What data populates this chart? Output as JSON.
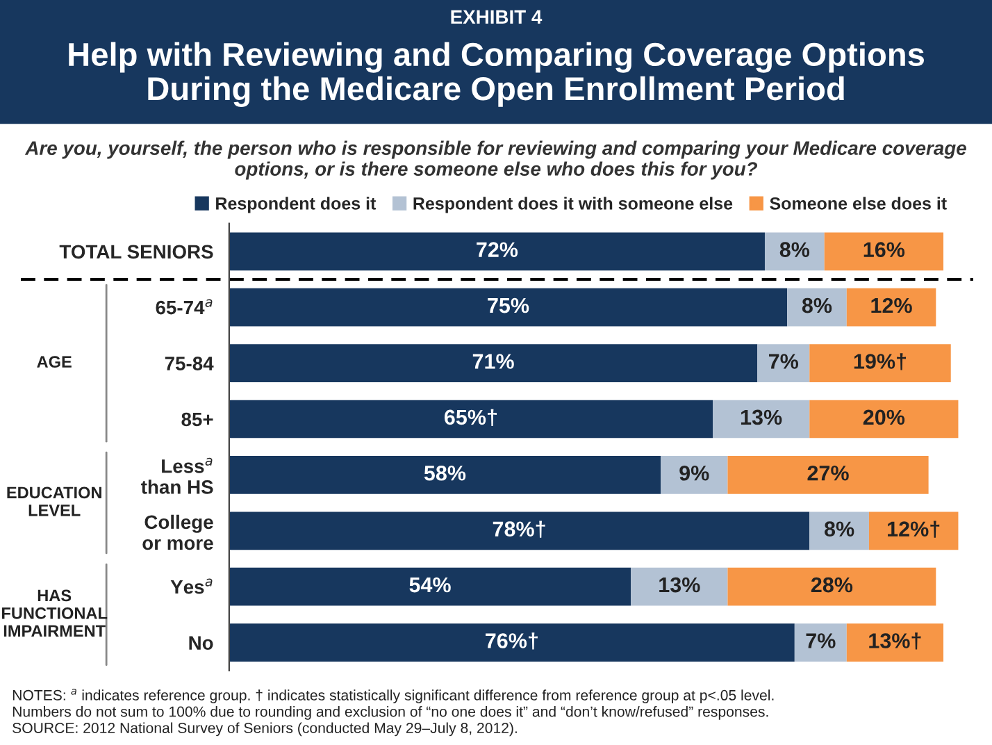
{
  "chart_data": {
    "type": "bar",
    "orientation": "horizontal",
    "stacked": true,
    "title": "Help with Reviewing and Comparing Coverage Options\nDuring the Medicare Open Enrollment Period",
    "subtitle": "Are you, yourself, the person who is responsible for reviewing and comparing your Medicare coverage\noptions, or is there someone else who does this for you?",
    "categories": [
      "TOTAL SENIORS",
      "65-74$^{a}$",
      "75-84",
      "85+",
      "Less$^{a}$\nthan HS",
      "College\nor more",
      "Yes$^{a}$",
      "No"
    ],
    "series": [
      {
        "name": "Respondent does it",
        "color": "#17375e",
        "values": [
          72,
          75,
          71,
          65,
          58,
          78,
          54,
          76
        ],
        "value_labels": [
          "72%",
          "75%",
          "71%",
          "65%†",
          "58%",
          "78%†",
          "54%",
          "76%†"
        ]
      },
      {
        "name": "Respondent does it with someone else",
        "color": "#b3c2d4",
        "values": [
          8,
          8,
          7,
          13,
          9,
          8,
          13,
          7
        ],
        "value_labels": [
          "8%",
          "8%",
          "7%",
          "13%",
          "9%",
          "8%",
          "13%",
          "7%"
        ]
      },
      {
        "name": "Someone else does it",
        "color": "#f79646",
        "values": [
          16,
          12,
          19,
          20,
          27,
          12,
          28,
          13
        ],
        "value_labels": [
          "16%",
          "12%",
          "19%†",
          "20%",
          "27%",
          "12%†",
          "28%",
          "13%†"
        ]
      }
    ],
    "xlim": [
      0,
      100
    ],
    "tick_labels": "y",
    "legend": "top",
    "grid": false,
    "annotations": [
      "EXHIBIT 4",
      "AGE",
      "EDUCATION\nLEVEL",
      "HAS\nFUNCTIONAL\nIMPAIRMENT",
      "NOTES: $^{a}$ indicates reference group. † indicates statistically significant difference from reference group at p<.05 level.\nNumbers do not sum to 100% due to rounding and exclusion of “no one does it” and “don’t know/refused” responses.\nSOURCE: 2012 National Survey of Seniors (conducted May 29–July 8, 2012)."
    ]
  }
}
